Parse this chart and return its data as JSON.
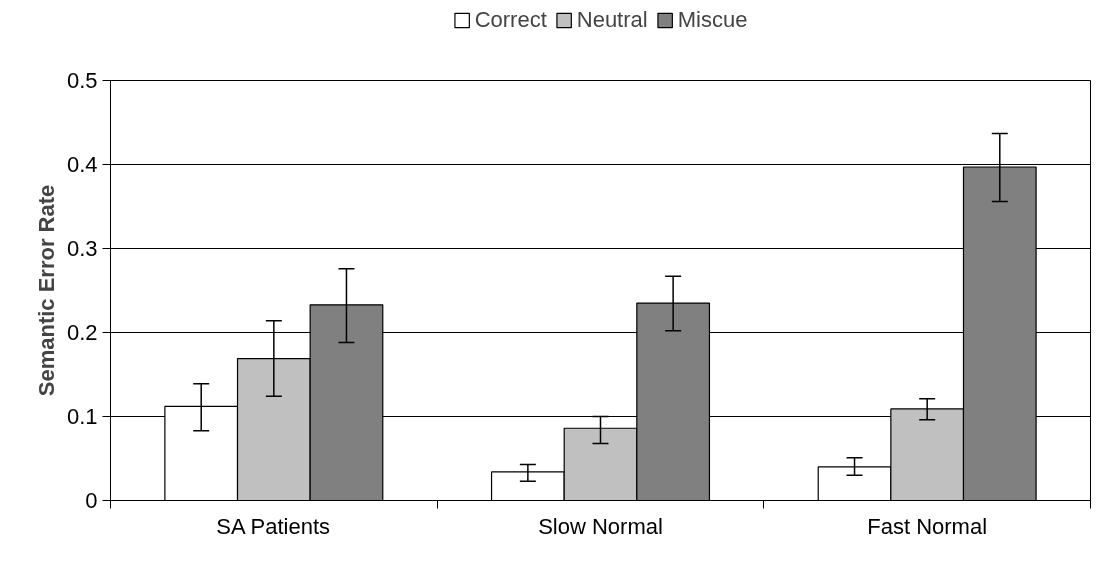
{
  "chart_data": {
    "type": "bar",
    "ylabel": "Semantic Error Rate",
    "categories": [
      "SA Patients",
      "Slow Normal",
      "Fast Normal"
    ],
    "series": [
      {
        "name": "Correct",
        "color": "#ffffff",
        "values": [
          0.112,
          0.034,
          0.04
        ],
        "errors": [
          [
            0.083,
            0.139
          ],
          [
            0.023,
            0.043
          ],
          [
            0.03,
            0.051
          ]
        ]
      },
      {
        "name": "Neutral",
        "color": "#c0c0c0",
        "values": [
          0.169,
          0.086,
          0.109
        ],
        "errors": [
          [
            0.124,
            0.214
          ],
          [
            0.068,
            0.1
          ],
          [
            0.096,
            0.121
          ]
        ]
      },
      {
        "name": "Miscue",
        "color": "#808080",
        "values": [
          0.233,
          0.235,
          0.397
        ],
        "errors": [
          [
            0.188,
            0.276
          ],
          [
            0.202,
            0.267
          ],
          [
            0.356,
            0.437
          ]
        ]
      }
    ],
    "ylim": [
      0,
      0.5
    ],
    "yticks": [
      0,
      0.1,
      0.2,
      0.3,
      0.4,
      0.5
    ],
    "grid": "y",
    "legend": "top"
  }
}
